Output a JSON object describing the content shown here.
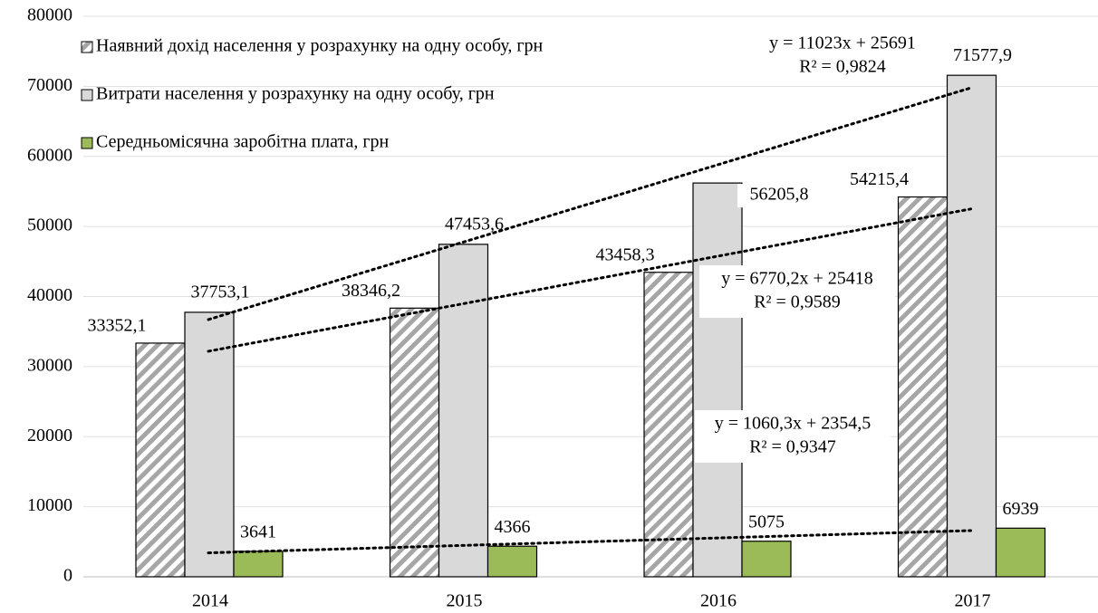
{
  "chart_data": {
    "type": "bar",
    "categories": [
      "2014",
      "2015",
      "2016",
      "2017"
    ],
    "series": [
      {
        "name": "Наявний дохід населення у розрахунку на одну особу, грн",
        "color": "#a6a6a6",
        "pattern": "diagonal-hatch",
        "values": [
          33352.1,
          38346.2,
          43458.3,
          54215.4
        ],
        "value_labels": [
          "33352,1",
          "38346,2",
          "43458,3",
          "54215,4"
        ],
        "trendline": {
          "equation": "y = 6770,2x + 25418",
          "r_squared": "R² = 0,9589"
        }
      },
      {
        "name": "Витрати населення у розрахунку на одну особу, грн",
        "color": "#d9d9d9",
        "values": [
          37753.1,
          47453.6,
          56205.8,
          71577.9
        ],
        "value_labels": [
          "37753,1",
          "47453,6",
          "56205,8",
          "71577,9"
        ],
        "trendline": {
          "equation": "y = 11023x + 25691",
          "r_squared": "R² = 0,9824"
        }
      },
      {
        "name": "Середньомісячна заробітна плата, грн",
        "color": "#9bbb59",
        "values": [
          3641,
          4366,
          5075,
          6939
        ],
        "trendline": {
          "equation": "y = 1060,3x + 2354,5",
          "r_squared": "R² = 0,9347"
        }
      }
    ],
    "ylim": [
      0,
      80000
    ],
    "yticks": [
      0,
      10000,
      20000,
      30000,
      40000,
      50000,
      60000,
      70000,
      80000
    ],
    "grid": true,
    "legend": "top-left"
  }
}
